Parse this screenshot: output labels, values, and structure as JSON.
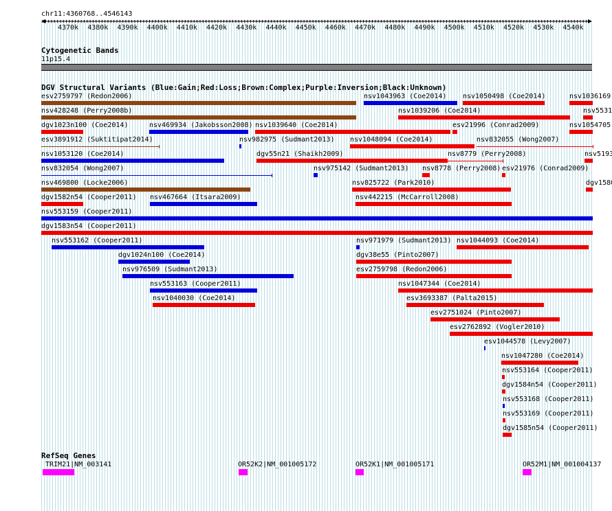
{
  "ruler": {
    "position_label": "chr11:4360768..4546143",
    "ticks": [
      "4370k",
      "4380k",
      "4390k",
      "4400k",
      "4410k",
      "4420k",
      "4430k",
      "4440k",
      "4450k",
      "4460k",
      "4470k",
      "4480k",
      "4490k",
      "4500k",
      "4510k",
      "4520k",
      "4530k",
      "4540k"
    ]
  },
  "cytobands": {
    "title": "Cytogenetic Bands",
    "band_label": "11p15.4"
  },
  "dgv": {
    "title": "DGV Structural Variants (Blue:Gain;Red:Loss;Brown:Complex;Purple:Inversion;Black:Unknown)",
    "features": [
      {
        "label": "esv2759797 (Redon2006)",
        "type": "complex"
      },
      {
        "label": "nsv1043963 (Coe2014)",
        "type": "gain"
      },
      {
        "label": "nsv1050498 (Coe2014)",
        "type": "loss"
      },
      {
        "label": "nsv1036169",
        "type": "loss"
      },
      {
        "label": "nsv428248 (Perry2008b)",
        "type": "complex"
      },
      {
        "label": "nsv1039206 (Coe2014)",
        "type": "loss"
      },
      {
        "label": "nsv5531",
        "type": "loss"
      },
      {
        "label": "dgv1023n100 (Coe2014)",
        "type": "loss"
      },
      {
        "label": "nsv469934 (Jakobsson2008)",
        "type": "gain"
      },
      {
        "label": "nsv1039640 (Coe2014)",
        "type": "loss"
      },
      {
        "label": "esv21996 (Conrad2009)",
        "type": "loss"
      },
      {
        "label": "nsv1054705",
        "type": "loss"
      },
      {
        "label": "esv3891912 (Suktitipat2014)",
        "type": "complex"
      },
      {
        "label": "nsv982975 (Sudmant2013)",
        "type": "gain"
      },
      {
        "label": "nsv1048094 (Coe2014)",
        "type": "loss"
      },
      {
        "label": "nsv832055 (Wong2007)",
        "type": "loss"
      },
      {
        "label": "nsv1053120 (Coe2014)",
        "type": "gain"
      },
      {
        "label": "dgv55n21 (Shaikh2009)",
        "type": "loss"
      },
      {
        "label": "nsv8779 (Perry2008)",
        "type": "loss"
      },
      {
        "label": "nsv5193",
        "type": "loss"
      },
      {
        "label": "nsv832054 (Wong2007)",
        "type": "gain"
      },
      {
        "label": "nsv975142 (Sudmant2013)",
        "type": "gain"
      },
      {
        "label": "nsv8778 (Perry2008)",
        "type": "loss"
      },
      {
        "label": "esv21976 (Conrad2009)",
        "type": "loss"
      },
      {
        "label": "nsv469800 (Locke2006)",
        "type": "complex"
      },
      {
        "label": "nsv825722 (Park2010)",
        "type": "loss"
      },
      {
        "label": "dgv1580",
        "type": "loss"
      },
      {
        "label": "dgv1582n54 (Cooper2011)",
        "type": "loss"
      },
      {
        "label": "nsv467664 (Itsara2009)",
        "type": "gain"
      },
      {
        "label": "nsv442215 (McCarroll2008)",
        "type": "loss"
      },
      {
        "label": "nsv553159 (Cooper2011)",
        "type": "gain"
      },
      {
        "label": "dgv1583n54 (Cooper2011)",
        "type": "loss"
      },
      {
        "label": "nsv553162 (Cooper2011)",
        "type": "gain"
      },
      {
        "label": "nsv971979 (Sudmant2013)",
        "type": "gain"
      },
      {
        "label": "nsv1044093 (Coe2014)",
        "type": "loss"
      },
      {
        "label": "dgv1024n100 (Coe2014)",
        "type": "gain"
      },
      {
        "label": "dgv38e55 (Pinto2007)",
        "type": "loss"
      },
      {
        "label": "nsv976509 (Sudmant2013)",
        "type": "gain"
      },
      {
        "label": "esv2759798 (Redon2006)",
        "type": "loss"
      },
      {
        "label": "nsv553163 (Cooper2011)",
        "type": "gain"
      },
      {
        "label": "nsv1047344 (Coe2014)",
        "type": "loss"
      },
      {
        "label": "nsv1040030 (Coe2014)",
        "type": "loss"
      },
      {
        "label": "esv3693387 (Palta2015)",
        "type": "loss"
      },
      {
        "label": "esv2751024 (Pinto2007)",
        "type": "loss"
      },
      {
        "label": "esv2762892 (Vogler2010)",
        "type": "loss"
      },
      {
        "label": "esv1044578 (Levy2007)",
        "type": "gain"
      },
      {
        "label": "nsv1047280 (Coe2014)",
        "type": "loss"
      },
      {
        "label": "nsv553164 (Cooper2011)",
        "type": "loss"
      },
      {
        "label": "dgv1584n54 (Cooper2011)",
        "type": "loss"
      },
      {
        "label": "nsv553168 (Cooper2011)",
        "type": "gain"
      },
      {
        "label": "nsv553169 (Cooper2011)",
        "type": "loss"
      },
      {
        "label": "dgv1585n54 (Cooper2011)",
        "type": "loss"
      }
    ]
  },
  "refseq": {
    "title": "RefSeq Genes",
    "genes": [
      {
        "label": "TRIM21|NM_003141"
      },
      {
        "label": "OR52K2|NM_001005172"
      },
      {
        "label": "OR52K1|NM_001005171"
      },
      {
        "label": "OR52M1|NM_001004137"
      }
    ]
  },
  "colors": {
    "gain": "#0000dd",
    "loss": "#ee0000",
    "complex": "#8b4513",
    "gene": "#ff00ff",
    "grid": "#b9dde6"
  }
}
